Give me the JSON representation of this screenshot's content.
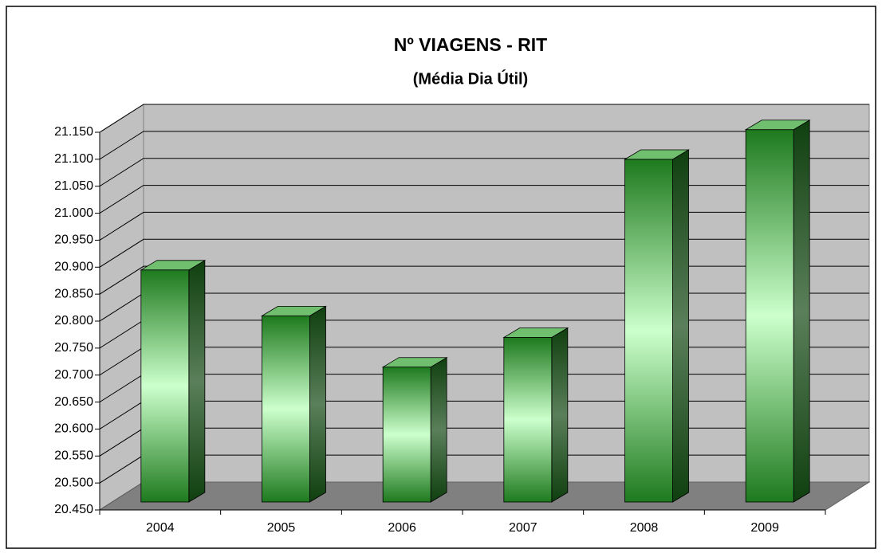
{
  "chart_data": {
    "type": "bar3d",
    "title": "Nº VIAGENS  -  RIT",
    "subtitle": "(Média Dia Útil)",
    "categories": [
      "2004",
      "2005",
      "2006",
      "2007",
      "2008",
      "2009"
    ],
    "values": [
      20880,
      20795,
      20700,
      20755,
      21085,
      21140
    ],
    "color": "#1e7a1e",
    "ylim": [
      20450,
      21150
    ],
    "yticks": [
      {
        "value": 20450,
        "label": "20.450"
      },
      {
        "value": 20500,
        "label": "20.500"
      },
      {
        "value": 20550,
        "label": "20.550"
      },
      {
        "value": 20600,
        "label": "20.600"
      },
      {
        "value": 20650,
        "label": "20.650"
      },
      {
        "value": 20700,
        "label": "20.700"
      },
      {
        "value": 20750,
        "label": "20.750"
      },
      {
        "value": 20800,
        "label": "20.800"
      },
      {
        "value": 20850,
        "label": "20.850"
      },
      {
        "value": 20900,
        "label": "20.900"
      },
      {
        "value": 20950,
        "label": "20.950"
      },
      {
        "value": 21000,
        "label": "21.000"
      },
      {
        "value": 21050,
        "label": "21.050"
      },
      {
        "value": 21100,
        "label": "21.100"
      },
      {
        "value": 21150,
        "label": "21.150"
      }
    ],
    "grid": true
  }
}
